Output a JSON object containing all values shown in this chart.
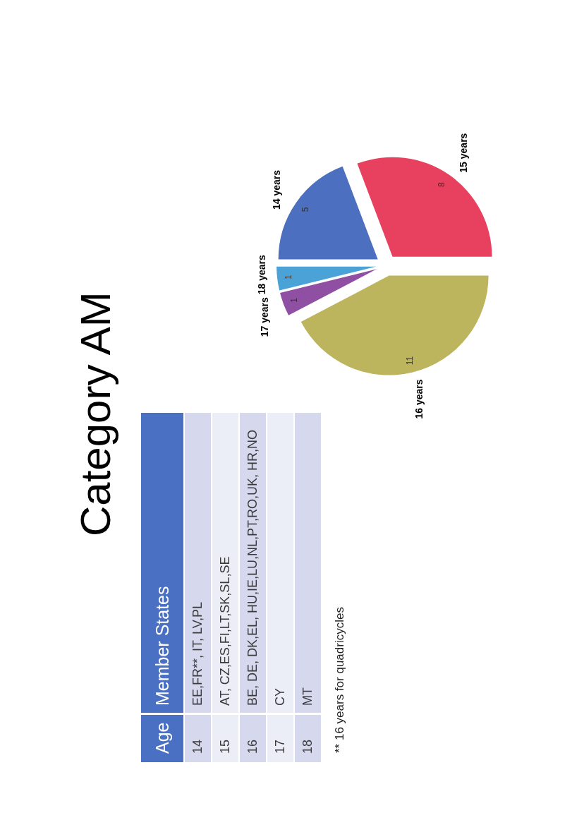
{
  "chart_data": [
    {
      "type": "other",
      "title": "Category AM",
      "annotations": [
        "Age\tMember States",
        "14\tEE,FR**, IT, LV,PL",
        "15\tAT, CZ,ES,FI,LT,SK,SL,SE",
        "16\tBE, DE, DK,EL, HU,IE,LU,NL,PT,RO,UK, HR,NO",
        "17\tCY",
        "18\tMT",
        "** 16 years for quadricycles"
      ]
    },
    {
      "type": "pie",
      "categories": [
        "14 years",
        "15 years",
        "16 years",
        "17 years",
        "18 years"
      ],
      "values": [
        5,
        8,
        11,
        1,
        1
      ],
      "colors": [
        "#4d6fbf",
        "#e8415f",
        "#bdb45e",
        "#8f4fa3",
        "#4aa2d6"
      ],
      "data_labels": true
    }
  ]
}
